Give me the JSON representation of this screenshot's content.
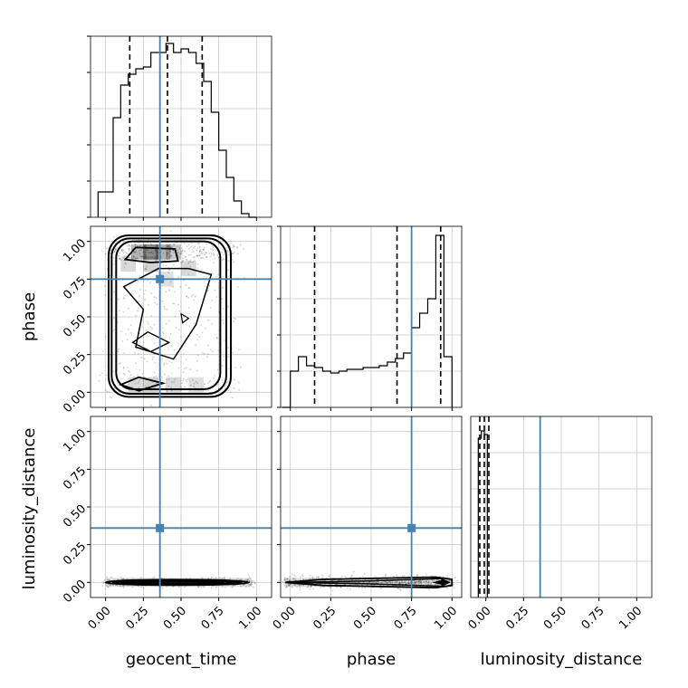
{
  "chart_data": {
    "type": "corner",
    "parameters": [
      "geocent_time",
      "phase",
      "luminosity_distance"
    ],
    "axis_ticks": [
      "0.00",
      "0.25",
      "0.50",
      "0.75",
      "1.00"
    ],
    "truths": {
      "geocent_time": 0.36,
      "phase": 0.75,
      "luminosity_distance": 0.36
    },
    "colors": {
      "truth": "#4682b4",
      "hist": "#000000",
      "grid": "#c8c8c8"
    },
    "grid": true,
    "diagonal": [
      {
        "parameter": "geocent_time",
        "xlim": [
          -0.1,
          1.1
        ],
        "bin_edges": [
          -0.05,
          0.0,
          0.05,
          0.1,
          0.15,
          0.2,
          0.25,
          0.3,
          0.35,
          0.4,
          0.45,
          0.5,
          0.55,
          0.6,
          0.65,
          0.7,
          0.75,
          0.8,
          0.85,
          0.9,
          0.95,
          1.0
        ],
        "counts": [
          0.14,
          0.14,
          0.55,
          0.73,
          0.79,
          0.82,
          0.83,
          0.91,
          0.91,
          0.96,
          0.91,
          0.93,
          0.91,
          0.85,
          0.75,
          0.58,
          0.37,
          0.22,
          0.09,
          0.02,
          0.0
        ],
        "quantiles": [
          0.16,
          0.41,
          0.64
        ]
      },
      {
        "parameter": "phase",
        "xlim": [
          -0.06,
          1.06
        ],
        "bin_edges": [
          -0.05,
          0.0,
          0.05,
          0.1,
          0.15,
          0.2,
          0.25,
          0.3,
          0.35,
          0.4,
          0.45,
          0.5,
          0.55,
          0.6,
          0.65,
          0.7,
          0.75,
          0.8,
          0.85,
          0.9,
          0.95,
          1.0
        ],
        "counts": [
          0.0,
          0.2,
          0.28,
          0.23,
          0.22,
          0.2,
          0.19,
          0.2,
          0.21,
          0.21,
          0.22,
          0.22,
          0.23,
          0.25,
          0.27,
          0.3,
          0.44,
          0.52,
          0.6,
          0.95,
          0.28
        ],
        "quantiles": [
          0.15,
          0.66,
          0.93
        ]
      },
      {
        "parameter": "luminosity_distance",
        "xlim": [
          -0.1,
          1.1
        ],
        "bin_edges": [
          -0.05,
          -0.03,
          -0.01,
          0.01
        ],
        "counts": [
          0.88,
          0.92,
          0.9
        ],
        "quantiles": [
          -0.04,
          -0.01,
          0.02
        ]
      }
    ],
    "scatter": [
      {
        "row": "phase",
        "col": "geocent_time",
        "xlim": [
          -0.1,
          1.1
        ],
        "ylim": [
          -0.1,
          1.1
        ],
        "point_range_x": [
          0.0,
          0.88
        ],
        "point_range_y": [
          0.0,
          1.0
        ]
      },
      {
        "row": "luminosity_distance",
        "col": "geocent_time",
        "xlim": [
          -0.1,
          1.1
        ],
        "ylim": [
          -0.1,
          1.1
        ],
        "point_range_x": [
          0.0,
          0.97
        ],
        "point_range_y": [
          -0.02,
          0.02
        ]
      },
      {
        "row": "luminosity_distance",
        "col": "phase",
        "xlim": [
          -0.06,
          1.06
        ],
        "ylim": [
          -0.1,
          1.1
        ],
        "point_range_x": [
          -0.04,
          1.0
        ],
        "point_range_y": [
          -0.03,
          0.03
        ]
      }
    ]
  }
}
